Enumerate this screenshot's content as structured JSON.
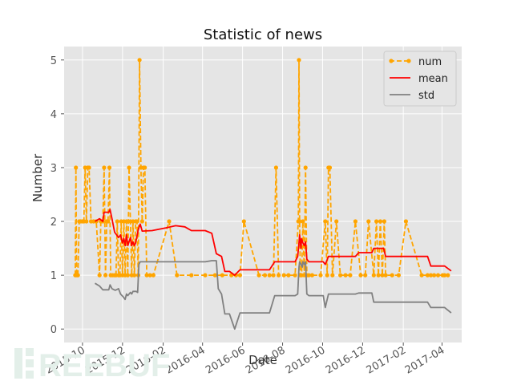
{
  "chart_data": {
    "type": "line",
    "title": "Statistic of news",
    "xlabel": "Date",
    "ylabel": "Number",
    "xlim": [
      "2015-09-03",
      "2017-05-01"
    ],
    "ylim": [
      -0.25,
      5.25
    ],
    "grid": true,
    "legend_position": "top-right",
    "x_ticks": [
      "2015-10",
      "2015-12",
      "2016-02",
      "2016-04",
      "2016-06",
      "2016-08",
      "2016-10",
      "2016-12",
      "2017-02",
      "2017-04"
    ],
    "y_ticks": [
      0,
      1,
      2,
      3,
      4,
      5
    ],
    "series": [
      {
        "name": "num",
        "style": "dashed-with-markers",
        "color": "#FFA500",
        "points": [
          [
            "2015-09-20",
            1
          ],
          [
            "2015-09-21",
            3
          ],
          [
            "2015-09-22",
            1
          ],
          [
            "2015-09-24",
            1
          ],
          [
            "2015-09-26",
            2
          ],
          [
            "2015-09-28",
            2
          ],
          [
            "2015-10-01",
            2
          ],
          [
            "2015-10-03",
            2
          ],
          [
            "2015-10-05",
            3
          ],
          [
            "2015-10-07",
            2
          ],
          [
            "2015-10-09",
            3
          ],
          [
            "2015-10-11",
            3
          ],
          [
            "2015-10-14",
            2
          ],
          [
            "2015-10-18",
            2
          ],
          [
            "2015-10-22",
            2
          ],
          [
            "2015-10-27",
            1
          ],
          [
            "2015-10-29",
            2
          ],
          [
            "2015-11-01",
            2
          ],
          [
            "2015-11-03",
            3
          ],
          [
            "2015-11-05",
            1
          ],
          [
            "2015-11-07",
            2
          ],
          [
            "2015-11-09",
            2
          ],
          [
            "2015-11-11",
            3
          ],
          [
            "2015-11-13",
            1
          ],
          [
            "2015-11-16",
            1
          ],
          [
            "2015-11-19",
            1
          ],
          [
            "2015-11-21",
            1
          ],
          [
            "2015-11-23",
            2
          ],
          [
            "2015-11-25",
            1
          ],
          [
            "2015-11-27",
            1
          ],
          [
            "2015-11-29",
            2
          ],
          [
            "2015-12-01",
            1
          ],
          [
            "2015-12-03",
            2
          ],
          [
            "2015-12-05",
            1
          ],
          [
            "2015-12-07",
            2
          ],
          [
            "2015-12-09",
            1
          ],
          [
            "2015-12-11",
            3
          ],
          [
            "2015-12-13",
            2
          ],
          [
            "2015-12-15",
            1
          ],
          [
            "2015-12-17",
            2
          ],
          [
            "2015-12-19",
            1
          ],
          [
            "2015-12-21",
            2
          ],
          [
            "2015-12-23",
            2
          ],
          [
            "2015-12-25",
            1
          ],
          [
            "2015-12-27",
            5
          ],
          [
            "2015-12-29",
            3
          ],
          [
            "2015-12-31",
            2
          ],
          [
            "2016-01-02",
            3
          ],
          [
            "2016-01-04",
            3
          ],
          [
            "2016-01-07",
            1
          ],
          [
            "2016-01-12",
            1
          ],
          [
            "2016-01-17",
            1
          ],
          [
            "2016-02-10",
            2
          ],
          [
            "2016-02-22",
            1
          ],
          [
            "2016-03-15",
            1
          ],
          [
            "2016-04-05",
            1
          ],
          [
            "2016-04-20",
            1
          ],
          [
            "2016-05-01",
            1
          ],
          [
            "2016-05-15",
            1
          ],
          [
            "2016-05-22",
            1
          ],
          [
            "2016-05-28",
            1
          ],
          [
            "2016-06-03",
            2
          ],
          [
            "2016-06-26",
            1
          ],
          [
            "2016-07-05",
            1
          ],
          [
            "2016-07-12",
            1
          ],
          [
            "2016-07-18",
            1
          ],
          [
            "2016-07-22",
            3
          ],
          [
            "2016-07-26",
            1
          ],
          [
            "2016-08-03",
            1
          ],
          [
            "2016-08-10",
            1
          ],
          [
            "2016-08-20",
            1
          ],
          [
            "2016-08-25",
            2
          ],
          [
            "2016-08-26",
            5
          ],
          [
            "2016-08-27",
            2
          ],
          [
            "2016-08-28",
            1
          ],
          [
            "2016-08-30",
            1
          ],
          [
            "2016-09-01",
            2
          ],
          [
            "2016-09-03",
            1
          ],
          [
            "2016-09-05",
            3
          ],
          [
            "2016-09-07",
            1
          ],
          [
            "2016-09-10",
            1
          ],
          [
            "2016-09-15",
            1
          ],
          [
            "2016-09-28",
            1
          ],
          [
            "2016-10-05",
            2
          ],
          [
            "2016-10-08",
            1
          ],
          [
            "2016-10-10",
            3
          ],
          [
            "2016-10-12",
            3
          ],
          [
            "2016-10-16",
            1
          ],
          [
            "2016-10-22",
            2
          ],
          [
            "2016-10-28",
            1
          ],
          [
            "2016-11-05",
            1
          ],
          [
            "2016-11-12",
            1
          ],
          [
            "2016-11-20",
            2
          ],
          [
            "2016-11-28",
            1
          ],
          [
            "2016-12-05",
            1
          ],
          [
            "2016-12-10",
            2
          ],
          [
            "2016-12-18",
            1
          ],
          [
            "2016-12-22",
            2
          ],
          [
            "2016-12-25",
            1
          ],
          [
            "2016-12-28",
            2
          ],
          [
            "2016-12-31",
            1
          ],
          [
            "2017-01-03",
            2
          ],
          [
            "2017-01-05",
            1
          ],
          [
            "2017-01-15",
            1
          ],
          [
            "2017-01-25",
            1
          ],
          [
            "2017-02-05",
            2
          ],
          [
            "2017-03-01",
            1
          ],
          [
            "2017-03-10",
            1
          ],
          [
            "2017-03-15",
            1
          ],
          [
            "2017-03-20",
            1
          ],
          [
            "2017-03-26",
            1
          ],
          [
            "2017-04-02",
            1
          ],
          [
            "2017-04-05",
            1
          ],
          [
            "2017-04-10",
            1
          ]
        ]
      },
      {
        "name": "mean",
        "style": "solid",
        "color": "#FF0000",
        "points": [
          [
            "2015-10-20",
            2.0
          ],
          [
            "2015-10-27",
            2.05
          ],
          [
            "2015-11-01",
            2.0
          ],
          [
            "2015-11-03",
            2.17
          ],
          [
            "2015-11-10",
            2.17
          ],
          [
            "2015-11-12",
            2.22
          ],
          [
            "2015-11-15",
            2.05
          ],
          [
            "2015-11-19",
            1.8
          ],
          [
            "2015-11-22",
            1.75
          ],
          [
            "2015-11-25",
            1.7
          ],
          [
            "2015-11-28",
            1.75
          ],
          [
            "2015-12-01",
            1.6
          ],
          [
            "2015-12-03",
            1.68
          ],
          [
            "2015-12-05",
            1.55
          ],
          [
            "2015-12-07",
            1.75
          ],
          [
            "2015-12-09",
            1.55
          ],
          [
            "2015-12-11",
            1.62
          ],
          [
            "2015-12-13",
            1.7
          ],
          [
            "2015-12-15",
            1.55
          ],
          [
            "2015-12-17",
            1.62
          ],
          [
            "2015-12-19",
            1.55
          ],
          [
            "2015-12-21",
            1.6
          ],
          [
            "2015-12-25",
            1.85
          ],
          [
            "2015-12-28",
            1.95
          ],
          [
            "2015-12-31",
            1.82
          ],
          [
            "2016-01-15",
            1.83
          ],
          [
            "2016-02-05",
            1.88
          ],
          [
            "2016-02-20",
            1.92
          ],
          [
            "2016-03-05",
            1.9
          ],
          [
            "2016-03-15",
            1.83
          ],
          [
            "2016-04-05",
            1.83
          ],
          [
            "2016-04-15",
            1.78
          ],
          [
            "2016-04-22",
            1.4
          ],
          [
            "2016-04-30",
            1.35
          ],
          [
            "2016-05-05",
            1.07
          ],
          [
            "2016-05-12",
            1.07
          ],
          [
            "2016-05-20",
            1.0
          ],
          [
            "2016-05-28",
            1.1
          ],
          [
            "2016-07-03",
            1.1
          ],
          [
            "2016-07-12",
            1.1
          ],
          [
            "2016-07-20",
            1.25
          ],
          [
            "2016-08-20",
            1.25
          ],
          [
            "2016-08-24",
            1.35
          ],
          [
            "2016-08-26",
            1.6
          ],
          [
            "2016-08-27",
            1.75
          ],
          [
            "2016-08-29",
            1.5
          ],
          [
            "2016-08-30",
            1.68
          ],
          [
            "2016-09-01",
            1.6
          ],
          [
            "2016-09-03",
            1.55
          ],
          [
            "2016-09-05",
            1.62
          ],
          [
            "2016-09-07",
            1.3
          ],
          [
            "2016-09-10",
            1.25
          ],
          [
            "2016-10-02",
            1.25
          ],
          [
            "2016-10-05",
            1.2
          ],
          [
            "2016-10-10",
            1.35
          ],
          [
            "2016-11-20",
            1.35
          ],
          [
            "2016-11-25",
            1.42
          ],
          [
            "2016-12-15",
            1.42
          ],
          [
            "2016-12-18",
            1.5
          ],
          [
            "2017-01-02",
            1.5
          ],
          [
            "2017-01-05",
            1.35
          ],
          [
            "2017-03-10",
            1.35
          ],
          [
            "2017-03-15",
            1.17
          ],
          [
            "2017-04-05",
            1.17
          ],
          [
            "2017-04-15",
            1.08
          ]
        ]
      },
      {
        "name": "std",
        "style": "solid",
        "color": "#808080",
        "points": [
          [
            "2015-10-20",
            0.85
          ],
          [
            "2015-10-27",
            0.8
          ],
          [
            "2015-11-01",
            0.73
          ],
          [
            "2015-11-10",
            0.73
          ],
          [
            "2015-11-12",
            0.82
          ],
          [
            "2015-11-15",
            0.75
          ],
          [
            "2015-11-20",
            0.72
          ],
          [
            "2015-11-25",
            0.75
          ],
          [
            "2015-11-28",
            0.65
          ],
          [
            "2015-12-02",
            0.6
          ],
          [
            "2015-12-05",
            0.55
          ],
          [
            "2015-12-07",
            0.65
          ],
          [
            "2015-12-09",
            0.62
          ],
          [
            "2015-12-13",
            0.68
          ],
          [
            "2015-12-15",
            0.65
          ],
          [
            "2015-12-17",
            0.7
          ],
          [
            "2015-12-22",
            0.7
          ],
          [
            "2015-12-24",
            0.68
          ],
          [
            "2015-12-26",
            1.2
          ],
          [
            "2015-12-28",
            1.25
          ],
          [
            "2016-01-15",
            1.25
          ],
          [
            "2016-02-15",
            1.25
          ],
          [
            "2016-03-15",
            1.25
          ],
          [
            "2016-04-05",
            1.25
          ],
          [
            "2016-04-15",
            1.27
          ],
          [
            "2016-04-22",
            1.27
          ],
          [
            "2016-04-25",
            0.75
          ],
          [
            "2016-04-30",
            0.65
          ],
          [
            "2016-05-05",
            0.28
          ],
          [
            "2016-05-12",
            0.28
          ],
          [
            "2016-05-20",
            0.0
          ],
          [
            "2016-05-28",
            0.3
          ],
          [
            "2016-07-03",
            0.3
          ],
          [
            "2016-07-12",
            0.3
          ],
          [
            "2016-07-20",
            0.62
          ],
          [
            "2016-08-20",
            0.62
          ],
          [
            "2016-08-24",
            0.65
          ],
          [
            "2016-08-26",
            1.15
          ],
          [
            "2016-08-27",
            1.25
          ],
          [
            "2016-08-29",
            1.2
          ],
          [
            "2016-08-31",
            1.15
          ],
          [
            "2016-09-01",
            1.25
          ],
          [
            "2016-09-03",
            1.2
          ],
          [
            "2016-09-05",
            1.25
          ],
          [
            "2016-09-07",
            0.65
          ],
          [
            "2016-09-10",
            0.62
          ],
          [
            "2016-10-02",
            0.62
          ],
          [
            "2016-10-05",
            0.4
          ],
          [
            "2016-10-10",
            0.65
          ],
          [
            "2016-11-20",
            0.65
          ],
          [
            "2016-11-25",
            0.67
          ],
          [
            "2016-12-15",
            0.67
          ],
          [
            "2016-12-18",
            0.5
          ],
          [
            "2017-01-02",
            0.5
          ],
          [
            "2017-03-10",
            0.5
          ],
          [
            "2017-03-15",
            0.4
          ],
          [
            "2017-04-05",
            0.4
          ],
          [
            "2017-04-15",
            0.3
          ]
        ]
      }
    ]
  },
  "watermark": {
    "text": "REEBUF",
    "color": "#e3efe9"
  }
}
